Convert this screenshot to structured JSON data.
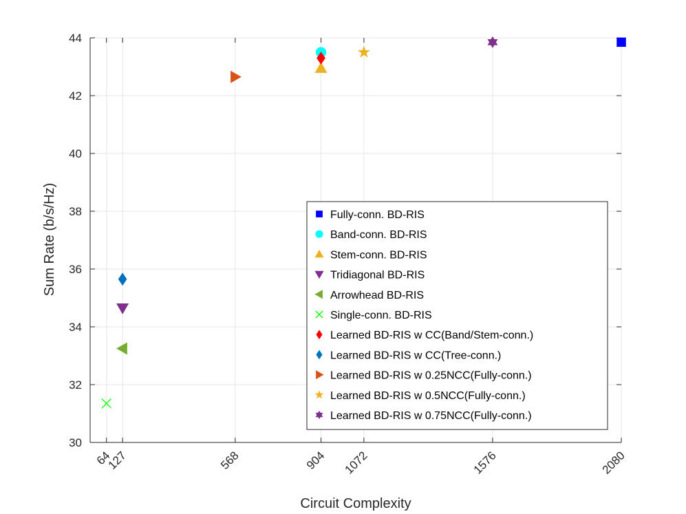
{
  "chart_data": {
    "type": "scatter",
    "xlabel": "Circuit Complexity",
    "ylabel": "Sum Rate (b/s/Hz)",
    "title": "",
    "xlim": [
      0,
      2080
    ],
    "ylim": [
      30,
      44
    ],
    "xticks": [
      64,
      127,
      568,
      904,
      1072,
      1576,
      2080
    ],
    "xtick_labels": [
      "64",
      "127",
      "568",
      "904",
      "1072",
      "1576",
      "2080"
    ],
    "yticks": [
      30,
      32,
      34,
      36,
      38,
      40,
      42,
      44
    ],
    "ytick_labels": [
      "30",
      "32",
      "34",
      "36",
      "38",
      "40",
      "42",
      "44"
    ],
    "grid": true,
    "legend_position": "lower-right",
    "series": [
      {
        "name": "Fully-conn. BD-RIS",
        "marker": "square",
        "color": "#0000ff",
        "x": 2080,
        "y": 43.85
      },
      {
        "name": "Band-conn. BD-RIS",
        "marker": "circle",
        "color": "#00ffff",
        "x": 904,
        "y": 43.5
      },
      {
        "name": "Stem-conn. BD-RIS",
        "marker": "triangle-up",
        "color": "#edb120",
        "x": 904,
        "y": 42.95
      },
      {
        "name": "Tridiagonal BD-RIS",
        "marker": "triangle-down",
        "color": "#7e2f8e",
        "x": 127,
        "y": 34.65
      },
      {
        "name": "Arrowhead BD-RIS",
        "marker": "triangle-left",
        "color": "#77ac30",
        "x": 127,
        "y": 33.25
      },
      {
        "name": "Single-conn. BD-RIS",
        "marker": "x",
        "color": "#00ff00",
        "x": 64,
        "y": 31.35
      },
      {
        "name": "Learned BD-RIS w CC(Band/Stem-conn.)",
        "marker": "diamond",
        "color": "#ff0000",
        "x": 904,
        "y": 43.3
      },
      {
        "name": "Learned BD-RIS w CC(Tree-conn.)",
        "marker": "diamond",
        "color": "#0072bd",
        "x": 127,
        "y": 35.65
      },
      {
        "name": "Learned BD-RIS w 0.25NCC(Fully-conn.)",
        "marker": "triangle-right",
        "color": "#d95319",
        "x": 568,
        "y": 42.65
      },
      {
        "name": "Learned BD-RIS w 0.5NCC(Fully-conn.)",
        "marker": "pentagram",
        "color": "#edb120",
        "x": 1072,
        "y": 43.5
      },
      {
        "name": "Learned BD-RIS w 0.75NCC(Fully-conn.)",
        "marker": "hexagram",
        "color": "#7e2f8e",
        "x": 1576,
        "y": 43.85
      }
    ]
  }
}
